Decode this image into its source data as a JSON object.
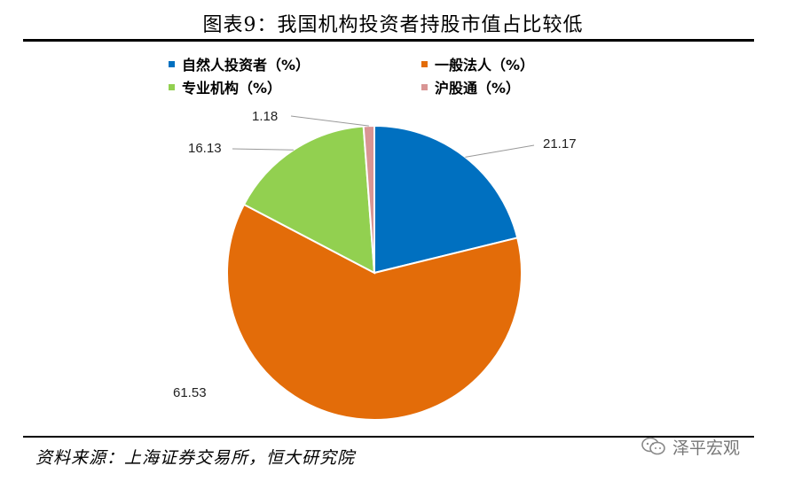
{
  "title": "图表9：我国机构投资者持股市值占比较低",
  "source": "资料来源：上海证券交易所，恒大研究院",
  "watermark": "泽平宏观",
  "chart_data": {
    "type": "pie",
    "legend_position": "top",
    "series": [
      {
        "name": "自然人投资者（%）",
        "value": 21.17,
        "label": "21.17",
        "color": "#0070C0"
      },
      {
        "name": "一般法人（%）",
        "value": 61.53,
        "label": "61.53",
        "color": "#E36C09"
      },
      {
        "name": "专业机构（%）",
        "value": 16.13,
        "label": "16.13",
        "color": "#92D050"
      },
      {
        "name": "沪股通（%）",
        "value": 1.18,
        "label": "1.18",
        "color": "#D99594"
      }
    ]
  }
}
